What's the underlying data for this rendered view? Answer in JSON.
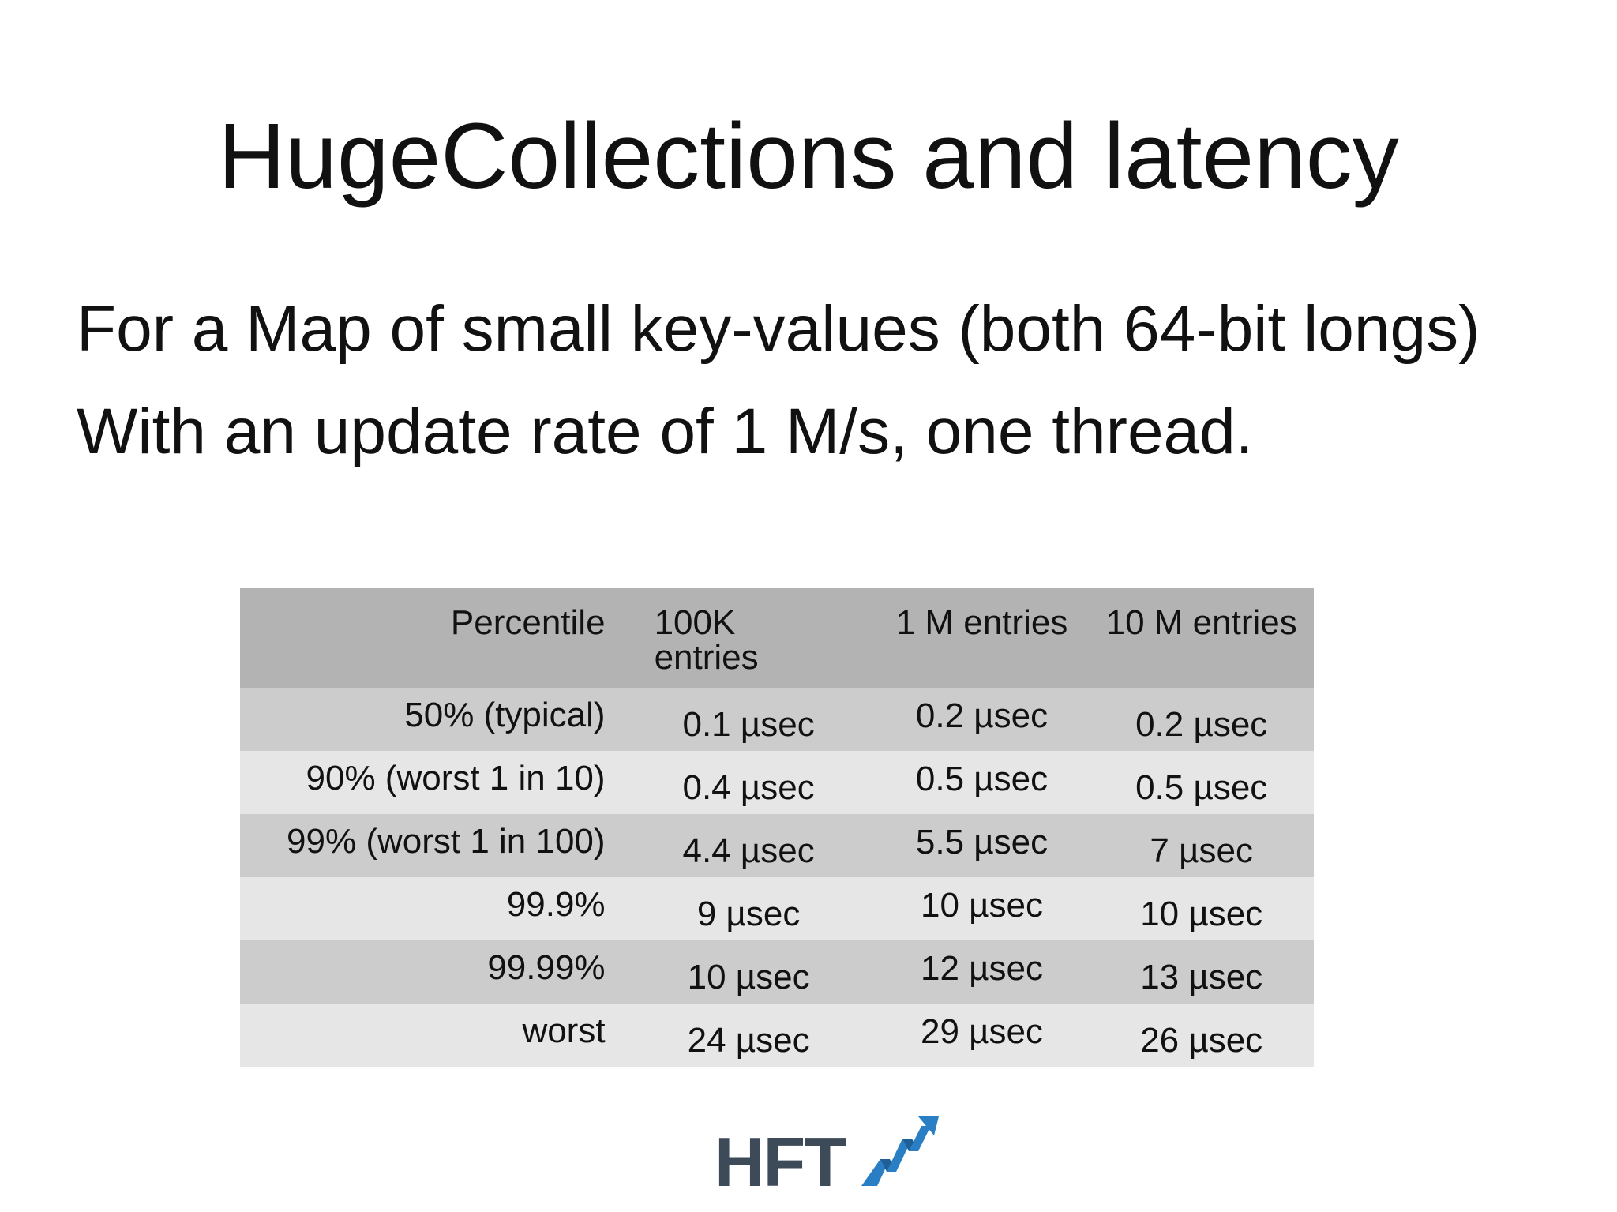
{
  "slide": {
    "title": "HugeCollections and latency",
    "line1": "For a Map of small key-values (both 64-bit longs)",
    "line2": "With an update rate of 1 M/s, one thread."
  },
  "table": {
    "headers": {
      "percentile": "Percentile",
      "col_100k_line1": "100K",
      "col_100k_line2": "entries",
      "col_1m": "1 M entries",
      "col_10m": "10 M entries"
    },
    "rows": [
      {
        "percentile": "50% (typical)",
        "v100k": "0.1 µsec",
        "v1m": "0.2 µsec",
        "v10m": "0.2 µsec"
      },
      {
        "percentile": "90% (worst 1 in 10)",
        "v100k": "0.4 µsec",
        "v1m": "0.5 µsec",
        "v10m": "0.5 µsec"
      },
      {
        "percentile": "99% (worst 1 in 100)",
        "v100k": "4.4 µsec",
        "v1m": "5.5 µsec",
        "v10m": "7 µsec"
      },
      {
        "percentile": "99.9%",
        "v100k": "9 µsec",
        "v1m": "10 µsec",
        "v10m": "10 µsec"
      },
      {
        "percentile": "99.99%",
        "v100k": "10 µsec",
        "v1m": "12 µsec",
        "v10m": "13 µsec"
      },
      {
        "percentile": "worst",
        "v100k": "24 µsec",
        "v1m": "29 µsec",
        "v10m": "26 µsec"
      }
    ]
  },
  "logo": {
    "text": "HFT",
    "icon": "rising-chart-arrow-icon",
    "text_color": "#3d4a57",
    "accent_color": "#2a7fc4"
  },
  "colors": {
    "header_bg": "#b3b3b3",
    "row_dark": "#cccccc",
    "row_light": "#e6e6e6"
  }
}
